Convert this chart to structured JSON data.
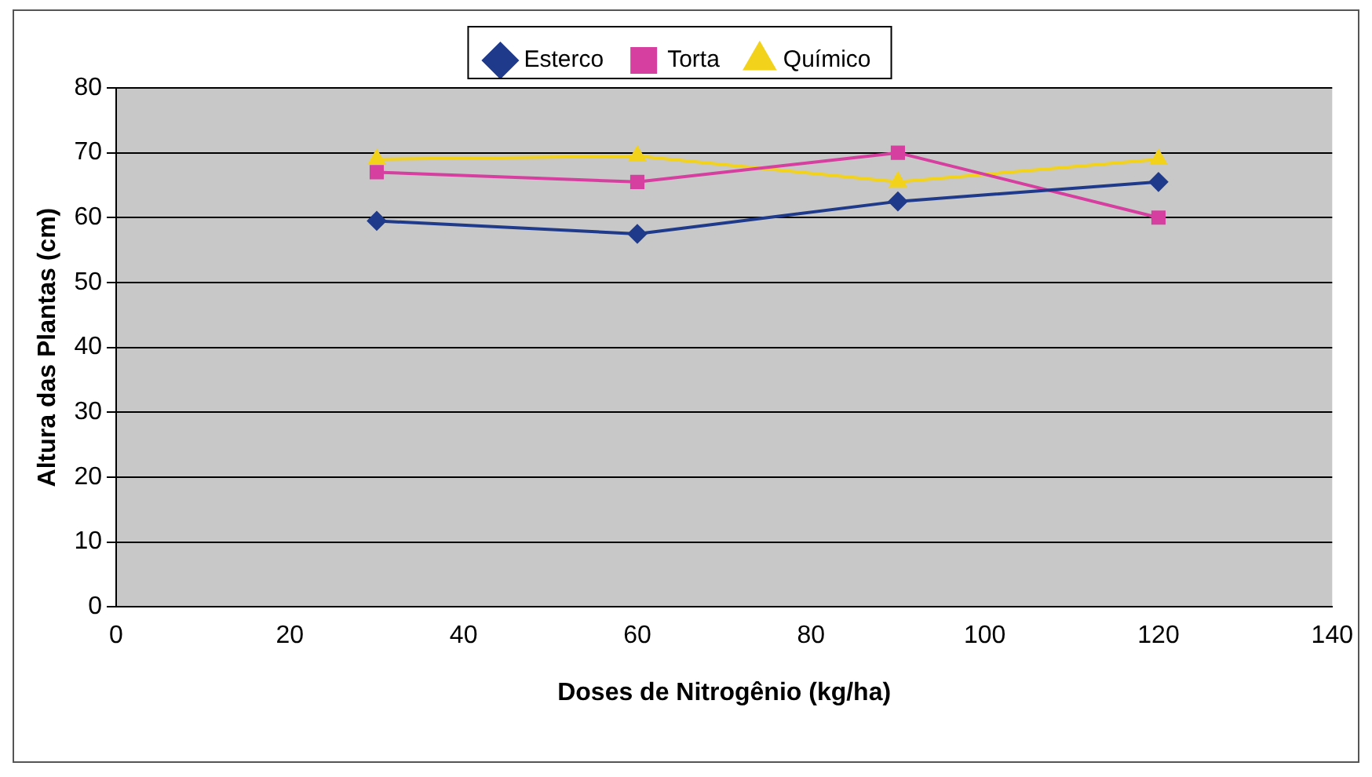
{
  "chart_data": {
    "type": "line",
    "xlabel": "Doses de Nitrogênio (kg/ha)",
    "ylabel": "Altura das Plantas (cm)",
    "x": [
      30,
      60,
      90,
      120
    ],
    "series": [
      {
        "name": "Esterco",
        "color": "#1f3a8a",
        "values": [
          59.5,
          57.5,
          62.5,
          65.5
        ],
        "marker": "diamond"
      },
      {
        "name": "Torta",
        "color": "#d63fa0",
        "values": [
          67,
          65.5,
          70,
          60
        ],
        "marker": "square"
      },
      {
        "name": "Químico",
        "color": "#f2d21b",
        "values": [
          69,
          69.5,
          65.5,
          69
        ],
        "marker": "triangle"
      }
    ],
    "xlim": [
      0,
      140
    ],
    "xticks": [
      0,
      20,
      40,
      60,
      80,
      100,
      120,
      140
    ],
    "ylim": [
      0,
      80
    ],
    "yticks": [
      0,
      10,
      20,
      30,
      40,
      50,
      60,
      70,
      80
    ],
    "grid": "y",
    "legend": "top",
    "line_style": "solid"
  }
}
